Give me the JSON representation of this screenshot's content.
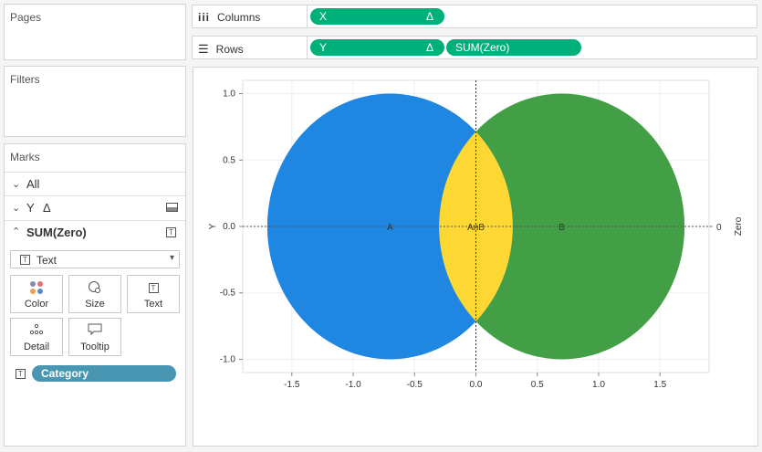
{
  "left": {
    "pages_title": "Pages",
    "filters_title": "Filters",
    "marks": {
      "title": "Marks",
      "all_label": "All",
      "y_label": "Y",
      "y_delta": "Δ",
      "sumzero_label": "SUM(Zero)",
      "mark_type": "Text",
      "cards": [
        "Color",
        "Size",
        "Text",
        "Detail",
        "Tooltip"
      ],
      "field_pill": "Category"
    }
  },
  "shelves": {
    "columns_label": "Columns",
    "rows_label": "Rows",
    "columns_pills": [
      {
        "label": "X",
        "delta": "Δ"
      }
    ],
    "rows_pills": [
      {
        "label": "Y",
        "delta": "Δ"
      },
      {
        "label": "SUM(Zero)"
      }
    ]
  },
  "chart_data": {
    "type": "scatter",
    "description_shapes": "Two overlapping circles (Venn-like)",
    "x_axis": {
      "label": "",
      "ticks": [
        -1.5,
        -1.0,
        -0.5,
        0.0,
        0.5,
        1.0,
        1.5
      ]
    },
    "y_axis": {
      "label": "Y",
      "ticks": [
        1.0,
        0.5,
        0.0,
        -0.5,
        -1.0
      ]
    },
    "y2_axis": {
      "label": "Zero",
      "ticks": [
        0
      ]
    },
    "regions": [
      {
        "name": "A",
        "color": "#1f86e1",
        "center_x": -0.7,
        "center_y": 0.0
      },
      {
        "name": "B",
        "color": "#429f46",
        "center_x": 0.7,
        "center_y": 0.0
      },
      {
        "name": "AnB",
        "color": "#fdd835",
        "center_x": 0.0,
        "center_y": 0.0
      }
    ],
    "circle_radius_x": 1.0,
    "circle_radius_y": 1.0
  }
}
